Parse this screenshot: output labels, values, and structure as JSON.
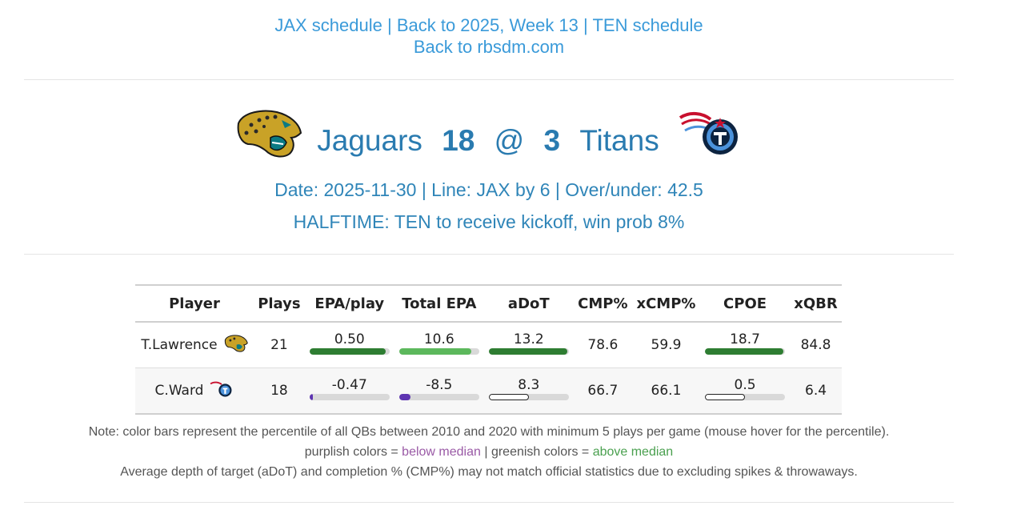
{
  "nav": {
    "jax_schedule": "JAX schedule",
    "sep": "|",
    "back_week": "Back to 2025, Week 13",
    "ten_schedule": "TEN schedule",
    "back_site": "Back to rbsdm.com"
  },
  "game": {
    "away_team": "Jaguars",
    "away_score": "18",
    "at": "@",
    "home_score": "3",
    "home_team": "Titans"
  },
  "info": {
    "details": "Date: 2025-11-30 | Line: JAX by 6 | Over/under: 42.5",
    "status": "HALFTIME: TEN to receive kickoff, win prob 8%"
  },
  "table": {
    "headers": [
      "Player",
      "Plays",
      "EPA/play",
      "Total EPA",
      "aDoT",
      "CMP%",
      "xCMP%",
      "CPOE",
      "xQBR"
    ],
    "rows": [
      {
        "player": "T.Lawrence",
        "team": "JAX",
        "plays": "21",
        "epa_play": "0.50",
        "epa_play_pct": 0.95,
        "epa_play_color": "#2e7d32",
        "total_epa": "10.6",
        "total_epa_pct": 0.9,
        "total_epa_color": "#5cb85c",
        "adot": "13.2",
        "adot_pct": 0.98,
        "adot_color": "#2e7d32",
        "cmp": "78.6",
        "xcmp": "59.9",
        "cpoe": "18.7",
        "cpoe_pct": 0.98,
        "cpoe_color": "#2e7d32",
        "xqbr": "84.8"
      },
      {
        "player": "C.Ward",
        "team": "TEN",
        "plays": "18",
        "epa_play": "-0.47",
        "epa_play_pct": 0.04,
        "epa_play_color": "#5e35b1",
        "total_epa": "-8.5",
        "total_epa_pct": 0.14,
        "total_epa_color": "#5e35b1",
        "adot": "8.3",
        "adot_pct": 0.5,
        "adot_color": "#ffffff",
        "cmp": "66.7",
        "xcmp": "66.1",
        "cpoe": "0.5",
        "cpoe_pct": 0.5,
        "cpoe_color": "#ffffff",
        "xqbr": "6.4"
      }
    ]
  },
  "notes": {
    "line1": "Note: color bars represent the percentile of all QBs between 2010 and 2020 with minimum 5 plays per game (mouse hover for the percentile).",
    "purple_prefix": "purplish colors = ",
    "purple_label": "below median",
    "green_prefix": " | greenish colors = ",
    "green_label": "above median",
    "line3": "Average depth of target (aDoT) and completion % (CMP%) may not match official statistics due to excluding spikes & throwaways."
  },
  "colors": {
    "link": "#3a9ad9",
    "title": "#2a7bb0",
    "below_median": "#9a5aa6",
    "above_median": "#4aa04f"
  }
}
